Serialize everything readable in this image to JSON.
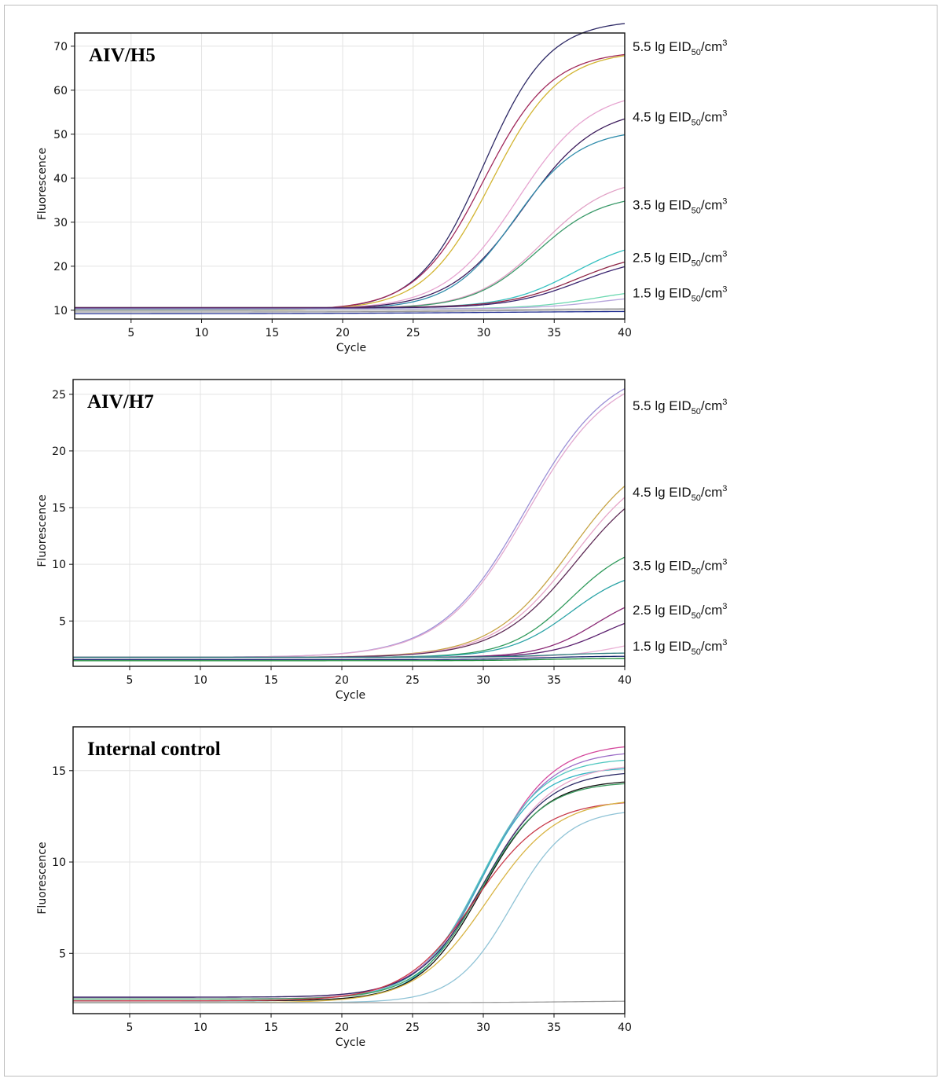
{
  "chart_data": [
    {
      "type": "line",
      "title": "AIV/H5",
      "xlabel": "Cycle",
      "ylabel": "Fluorescence",
      "xlim": [
        1,
        40
      ],
      "ylim": [
        8,
        73
      ],
      "xticks": [
        5,
        10,
        15,
        20,
        25,
        30,
        35,
        40
      ],
      "yticks": [
        10,
        20,
        30,
        40,
        50,
        60,
        70
      ],
      "grid": true,
      "annotations": [
        {
          "text": "5.5 lg EID",
          "sub": "50",
          "unit": "/cm",
          "sup": "3",
          "y": 70
        },
        {
          "text": "4.5 lg EID",
          "sub": "50",
          "unit": "/cm",
          "sup": "3",
          "y": 54
        },
        {
          "text": "3.5 lg EID",
          "sub": "50",
          "unit": "/cm",
          "sup": "3",
          "y": 34
        },
        {
          "text": "2.5 lg EID",
          "sub": "50",
          "unit": "/cm",
          "sup": "3",
          "y": 22
        },
        {
          "text": "1.5 lg EID",
          "sub": "50",
          "unit": "/cm",
          "sup": "3",
          "y": 14
        }
      ],
      "series": [
        {
          "color": "#2e2a66",
          "baseline": 10.0,
          "plateau": 66.0,
          "midpoint": 30.0,
          "slope": 2.3
        },
        {
          "color": "#a0285a",
          "baseline": 10.0,
          "plateau": 59.0,
          "midpoint": 30.0,
          "slope": 2.4
        },
        {
          "color": "#d2b431",
          "baseline": 10.0,
          "plateau": 59.0,
          "midpoint": 30.6,
          "slope": 2.4
        },
        {
          "color": "#e6a4d0",
          "baseline": 10.2,
          "plateau": 50.0,
          "midpoint": 32.4,
          "slope": 2.6
        },
        {
          "color": "#3c1c5c",
          "baseline": 10.2,
          "plateau": 46.0,
          "midpoint": 32.8,
          "slope": 2.6
        },
        {
          "color": "#2f8cab",
          "baseline": 10.2,
          "plateau": 41.0,
          "midpoint": 32.2,
          "slope": 2.3
        },
        {
          "color": "#e1a2c6",
          "baseline": 10.4,
          "plateau": 30.0,
          "midpoint": 34.2,
          "slope": 2.4
        },
        {
          "color": "#3b9a6a",
          "baseline": 10.4,
          "plateau": 26.0,
          "midpoint": 33.8,
          "slope": 2.3
        },
        {
          "color": "#35c1c1",
          "baseline": 10.6,
          "plateau": 16.0,
          "midpoint": 36.4,
          "slope": 2.4
        },
        {
          "color": "#8e2545",
          "baseline": 10.6,
          "plateau": 13.0,
          "midpoint": 36.6,
          "slope": 2.5
        },
        {
          "color": "#3a2470",
          "baseline": 10.5,
          "plateau": 12.0,
          "midpoint": 36.8,
          "slope": 2.5
        },
        {
          "color": "#6bd8b0",
          "baseline": 10.3,
          "plateau": 5.0,
          "midpoint": 38.0,
          "slope": 2.4
        },
        {
          "color": "#b7a6dc",
          "baseline": 10.3,
          "plateau": 3.5,
          "midpoint": 38.5,
          "slope": 2.4
        },
        {
          "color": "#9a9a9a",
          "baseline": 9.6,
          "plateau": 0.8,
          "midpoint": 34.0,
          "slope": 5.0
        },
        {
          "color": "#1d2b8f",
          "baseline": 9.2,
          "plateau": 0.6,
          "midpoint": 30.0,
          "slope": 6.0
        },
        {
          "color": "#c0c0c0",
          "baseline": 9.9,
          "plateau": 0.6,
          "midpoint": 33.0,
          "slope": 5.0
        }
      ]
    },
    {
      "type": "line",
      "title": "AIV/H7",
      "xlabel": "Cycle",
      "ylabel": "Fluorescence",
      "xlim": [
        1,
        40
      ],
      "ylim": [
        1,
        26.3
      ],
      "xticks": [
        5,
        10,
        15,
        20,
        25,
        30,
        35,
        40
      ],
      "yticks": [
        5,
        10,
        15,
        20,
        25
      ],
      "grid": true,
      "annotations": [
        {
          "text": "5.5 lg EID",
          "sub": "50",
          "unit": "/cm",
          "sup": "3",
          "y": 24
        },
        {
          "text": "4.5 lg EID",
          "sub": "50",
          "unit": "/cm",
          "sup": "3",
          "y": 16.4
        },
        {
          "text": "3.5 lg EID",
          "sub": "50",
          "unit": "/cm",
          "sup": "3",
          "y": 9.9
        },
        {
          "text": "2.5 lg EID",
          "sub": "50",
          "unit": "/cm",
          "sup": "3",
          "y": 6.0
        },
        {
          "text": "1.5 lg EID",
          "sub": "50",
          "unit": "/cm",
          "sup": "3",
          "y": 2.8
        }
      ],
      "series": [
        {
          "color": "#9b90d6",
          "baseline": 1.8,
          "plateau": 26.0,
          "midpoint": 33.0,
          "slope": 3.0
        },
        {
          "color": "#e2a8cf",
          "baseline": 1.8,
          "plateau": 25.6,
          "midpoint": 33.1,
          "slope": 3.0
        },
        {
          "color": "#c7a445",
          "baseline": 1.8,
          "plateau": 19.0,
          "midpoint": 36.2,
          "slope": 2.8
        },
        {
          "color": "#e6a6c8",
          "baseline": 1.8,
          "plateau": 18.0,
          "midpoint": 36.4,
          "slope": 2.8
        },
        {
          "color": "#5e2a55",
          "baseline": 1.8,
          "plateau": 17.0,
          "midpoint": 36.6,
          "slope": 2.8
        },
        {
          "color": "#2f9a5b",
          "baseline": 1.8,
          "plateau": 10.4,
          "midpoint": 36.2,
          "slope": 2.2
        },
        {
          "color": "#2aa3a6",
          "baseline": 1.8,
          "plateau": 8.0,
          "midpoint": 36.2,
          "slope": 2.2
        },
        {
          "color": "#8b2a76",
          "baseline": 1.8,
          "plateau": 6.0,
          "midpoint": 38.0,
          "slope": 2.0
        },
        {
          "color": "#5a1f6e",
          "baseline": 1.8,
          "plateau": 4.4,
          "midpoint": 38.5,
          "slope": 2.0
        },
        {
          "color": "#eab2d6",
          "baseline": 1.8,
          "plateau": 2.0,
          "midpoint": 40.0,
          "slope": 2.0
        },
        {
          "color": "#2d7e7e",
          "baseline": 1.8,
          "plateau": 0.4,
          "midpoint": 35.0,
          "slope": 2.0
        },
        {
          "color": "#1a2770",
          "baseline": 1.6,
          "plateau": 0.3,
          "midpoint": 34.0,
          "slope": 2.0
        },
        {
          "color": "#1c8a3a",
          "baseline": 1.5,
          "plateau": 0.2,
          "midpoint": 34.0,
          "slope": 2.0
        }
      ]
    },
    {
      "type": "line",
      "title": "Internal control",
      "xlabel": "Cycle",
      "ylabel": "Fluorescence",
      "xlim": [
        1,
        40
      ],
      "ylim": [
        1.7,
        17.4
      ],
      "xticks": [
        5,
        10,
        15,
        20,
        25,
        30,
        35,
        40
      ],
      "yticks": [
        5,
        10,
        15
      ],
      "grid": true,
      "annotations": [],
      "series": [
        {
          "color": "#d4479c",
          "baseline": 2.6,
          "plateau": 13.9,
          "midpoint": 30.2,
          "slope": 2.3
        },
        {
          "color": "#9b6cc7",
          "baseline": 2.5,
          "plateau": 13.6,
          "midpoint": 30.0,
          "slope": 2.3
        },
        {
          "color": "#4fc7c0",
          "baseline": 2.5,
          "plateau": 13.2,
          "midpoint": 29.8,
          "slope": 2.2
        },
        {
          "color": "#2eb3c2",
          "baseline": 2.4,
          "plateau": 12.8,
          "midpoint": 29.7,
          "slope": 2.1
        },
        {
          "color": "#e7a7cc",
          "baseline": 2.5,
          "plateau": 12.9,
          "midpoint": 30.1,
          "slope": 2.4
        },
        {
          "color": "#2c2a66",
          "baseline": 2.6,
          "plateau": 12.4,
          "midpoint": 30.0,
          "slope": 2.3
        },
        {
          "color": "#111111",
          "baseline": 2.4,
          "plateau": 12.1,
          "midpoint": 29.9,
          "slope": 2.2
        },
        {
          "color": "#3a9c5e",
          "baseline": 2.5,
          "plateau": 11.9,
          "midpoint": 29.8,
          "slope": 2.2
        },
        {
          "color": "#c83a4a",
          "baseline": 2.4,
          "plateau": 11.0,
          "midpoint": 29.4,
          "slope": 2.5
        },
        {
          "color": "#d8b444",
          "baseline": 2.3,
          "plateau": 11.2,
          "midpoint": 30.3,
          "slope": 2.5
        },
        {
          "color": "#8fc3d6",
          "baseline": 2.3,
          "plateau": 10.6,
          "midpoint": 32.0,
          "slope": 2.0
        },
        {
          "color": "#9a9a9a",
          "baseline": 2.3,
          "plateau": 0.1,
          "midpoint": 36.0,
          "slope": 3.0
        }
      ]
    }
  ]
}
